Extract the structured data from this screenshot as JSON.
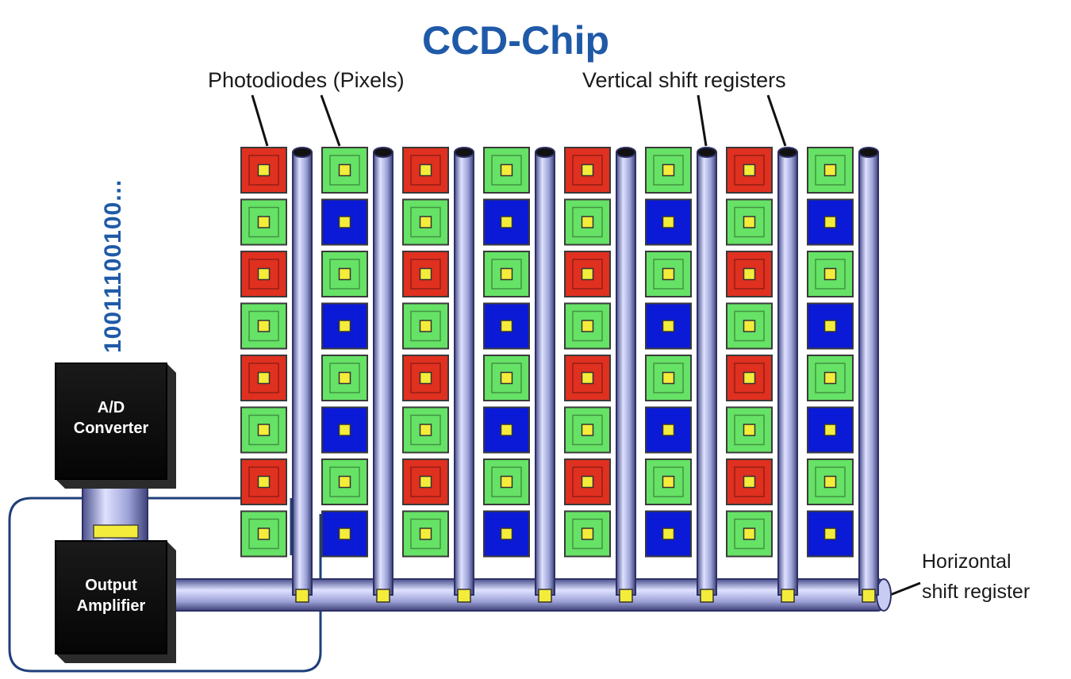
{
  "title": "CCD-Chip",
  "labels": {
    "photodiodes": "Photodiodes (Pixels)",
    "vertical_registers": "Vertical shift registers",
    "horizontal_register_line1": "Horizontal",
    "horizontal_register_line2": "shift register",
    "binary_output": "10011100100...",
    "ad_converter_line1": "A/D",
    "ad_converter_line2": "Converter",
    "amplifier_line1": "Output",
    "amplifier_line2": "Amplifier"
  },
  "colors": {
    "red": "#e03020",
    "green": "#66e266",
    "blue": "#0a1ad6",
    "center": "#f4ec3a",
    "title": "#1f5aa8",
    "binary": "#1f5aa8",
    "tube": "#a9aee0",
    "box": "#111111",
    "wire": "#1f3f7a"
  },
  "pixel_grid": {
    "columns": 8,
    "rows": 8,
    "odd_column_pattern": [
      "red",
      "green"
    ],
    "even_column_pattern": [
      "green",
      "blue"
    ]
  }
}
